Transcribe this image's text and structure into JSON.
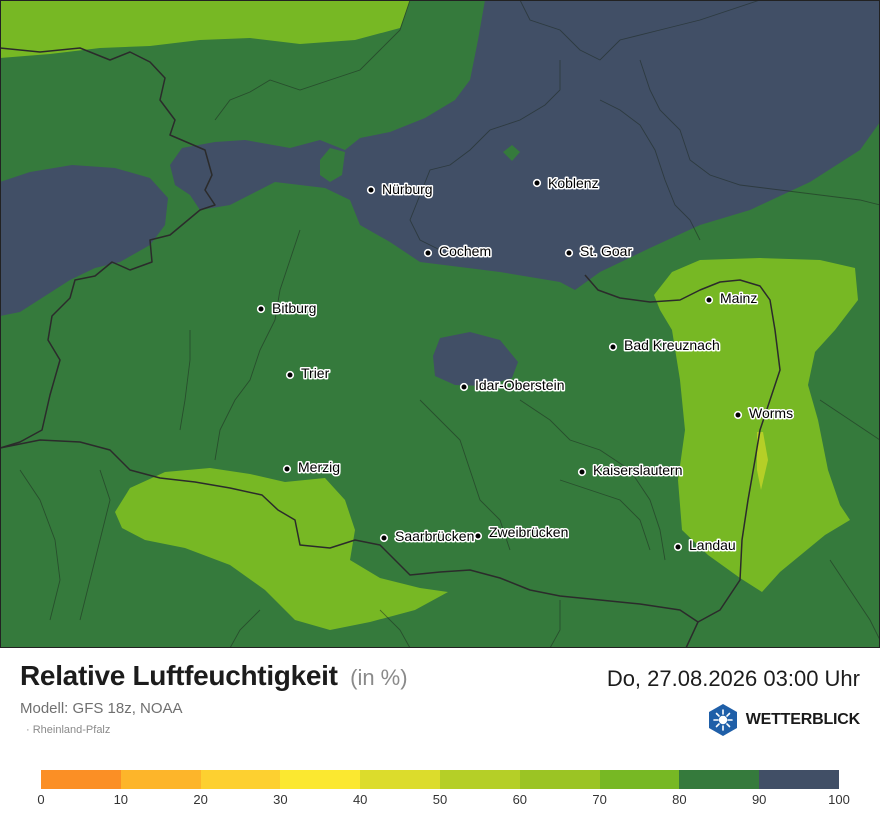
{
  "map": {
    "colors": {
      "band_60_70": "#9bc424",
      "band_70_80": "#77b824",
      "band_80_90": "#357a3c",
      "band_90_100": "#414f66",
      "band_50_60": "#b5cf27"
    },
    "cities": [
      {
        "name": "Nürburg",
        "dot": "city-dot"
      },
      {
        "name": "Koblenz"
      },
      {
        "name": "Cochem"
      },
      {
        "name": "St. Goar"
      },
      {
        "name": "Mainz"
      },
      {
        "name": "Bitburg"
      },
      {
        "name": "Bad Kreuznach"
      },
      {
        "name": "Trier"
      },
      {
        "name": "Idar-Oberstein"
      },
      {
        "name": "Worms"
      },
      {
        "name": "Merzig"
      },
      {
        "name": "Kaiserslautern"
      },
      {
        "name": "Saarbrücken"
      },
      {
        "name": "Zweibrücken"
      },
      {
        "name": "Landau"
      }
    ]
  },
  "footer": {
    "title": "Relative Luftfeuchtigkeit",
    "unit": "(in %)",
    "datetime": "Do, 27.08.2026 03:00 Uhr",
    "model": "Modell: GFS 18z, NOAA",
    "region": "· Rheinland-Pfalz",
    "brand": "WETTERBLICK",
    "brand_icon": "sun-snowflake-hexagon-icon"
  },
  "legend": {
    "colors": [
      "#fb8f25",
      "#fdb52a",
      "#fdd030",
      "#fbe830",
      "#dcdc2c",
      "#b5cf27",
      "#9bc424",
      "#77b824",
      "#357a3c",
      "#414f66"
    ],
    "ticks": [
      "0",
      "10",
      "20",
      "30",
      "40",
      "50",
      "60",
      "70",
      "80",
      "90",
      "100"
    ]
  }
}
